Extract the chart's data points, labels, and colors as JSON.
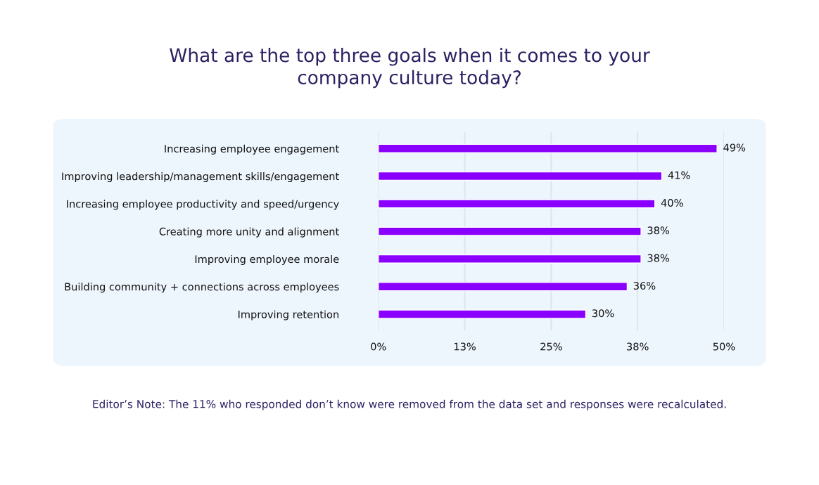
{
  "chart_data": {
    "type": "bar",
    "orientation": "horizontal",
    "title": "What are the top three goals when it comes to your\ncompany culture today?",
    "categories": [
      "Increasing employee engagement",
      "Improving leadership/management skills/engagement",
      "Increasing employee productivity and speed/urgency",
      "Creating more unity and alignment",
      "Improving employee morale",
      "Building community + connections across employees",
      "Improving retention"
    ],
    "values": [
      49,
      41,
      40,
      38,
      38,
      36,
      30
    ],
    "value_labels": [
      "49%",
      "41%",
      "40%",
      "38%",
      "38%",
      "36%",
      "30%"
    ],
    "color": "#8a00ff",
    "xlim": [
      0,
      50
    ],
    "xticks": [
      {
        "value": 0,
        "label": "0%"
      },
      {
        "value": 12.5,
        "label": "13%"
      },
      {
        "value": 25,
        "label": "25%"
      },
      {
        "value": 37.5,
        "label": "38%"
      },
      {
        "value": 50,
        "label": "50%"
      }
    ],
    "grid": "x",
    "annotations": [
      "Editor’s Note: The 11% who responded don’t know were removed from the data set and responses were recalculated."
    ]
  }
}
